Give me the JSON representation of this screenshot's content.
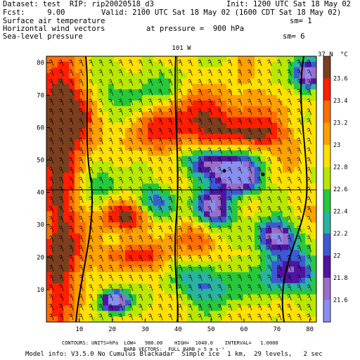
{
  "header": {
    "dataset": "Dataset: test  RIP: rip20020518_d3",
    "init": "Init: 1200 UTC Sat 18 May 02",
    "fcst": "Fcst:     9.00",
    "valid": "Valid: 2100 UTC Sat 18 May 02 (1600 CDT Sat 18 May 02)",
    "field1": "Surface air temperature",
    "sm1": "sm= 1",
    "field2": "Horizontal wind vectors",
    "pressure": "at pressure =  900 hPa",
    "field3": "Sea-level pressure",
    "sm2": "sm= 6"
  },
  "map": {
    "top_label": "101 W",
    "corner_label": "37 N",
    "x_ticks": [
      "10",
      "20",
      "30",
      "40",
      "50",
      "60",
      "70",
      "80"
    ],
    "y_ticks": [
      "10",
      "20",
      "30",
      "40",
      "50",
      "60",
      "70",
      "80"
    ],
    "colorbar_unit": "°C",
    "colorbar_labels": [
      "23.6",
      "23.4",
      "23.2",
      "23",
      "22.8",
      "22.6",
      "22.4",
      "22.2",
      "22",
      "21.8",
      "21.6"
    ],
    "colors": [
      "#7a3f1e",
      "#ff1e00",
      "#ff6e00",
      "#ffa000",
      "#ffe000",
      "#b8e800",
      "#28c83c",
      "#28b4a0",
      "#3c5ad2",
      "#5014a0",
      "#9a6ec8",
      "#8a8ef0"
    ],
    "grid_value_range": [
      21.5,
      23.7
    ]
  },
  "footer": {
    "contours": "CONTOURS: UNITS=hPa  LOW=   980.00    HIGH=  1040.0    INTERVAL=   1.0000",
    "barbs": "BARB VECTORS:  FULL BARB = 5 m s⁻¹",
    "model": "Model info: V3.5.0 No Cumulus Blackadar  Simple ice  1 km,  29 levels,   2 sec"
  }
}
